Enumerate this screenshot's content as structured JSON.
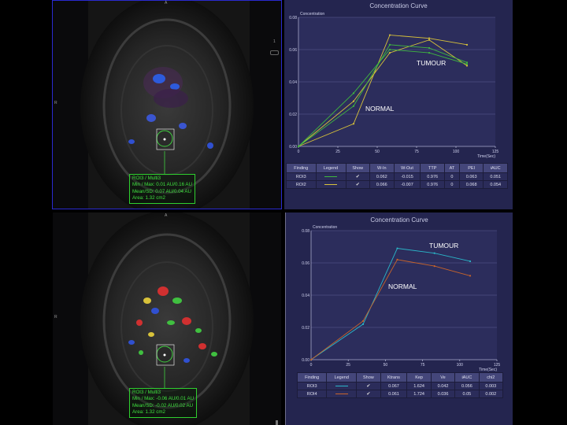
{
  "top": {
    "mri": {
      "orient_top": "A",
      "orient_left": "R",
      "roi_lines": [
        "ROI3 / Multi3",
        "Min / Max: 0.01 AU/0.16 AU",
        "Mean/SD: 0.07 AU/0.04 AU",
        "Area: 1.32 cm2"
      ]
    },
    "side_marker": "1",
    "chart": {
      "title": "Concentration Curve",
      "ylabel": "Concentration",
      "xlabel": "Time(Sec)",
      "annotations": [
        "TUMOUR",
        "NORMAL"
      ]
    },
    "table": {
      "headers": [
        "Finding",
        "Legend",
        "Show",
        "W-In",
        "W-Out",
        "TTP",
        "AT",
        "PEI",
        "iAUC"
      ],
      "rows": [
        {
          "finding": "ROI3",
          "color": "#3fb83f",
          "values": [
            "0.062",
            "-0.015",
            "0.976",
            "0",
            "0.063",
            "0.051"
          ]
        },
        {
          "finding": "ROI2",
          "color": "#d8c23a",
          "values": [
            "0.066",
            "-0.007",
            "0.976",
            "0",
            "0.068",
            "0.054"
          ]
        }
      ]
    }
  },
  "bottom": {
    "mri": {
      "orient_top": "A",
      "orient_left": "R",
      "roi_lines": [
        "ROI3 / Multi3",
        "Min / Max: -0.06 AU/0.01 AU",
        "Mean/SD: -0.02 AU/0.02 AU",
        "Area: 1.32 cm2"
      ]
    },
    "chart": {
      "title": "Concentration Curve",
      "ylabel": "Concentration",
      "xlabel": "Time(Sec)",
      "annotations": [
        "TUMOUR",
        "NORMAL"
      ]
    },
    "table": {
      "headers": [
        "Finding",
        "Legend",
        "Show",
        "Ktrans",
        "Kep",
        "Ve",
        "iAUC",
        "chi2"
      ],
      "rows": [
        {
          "finding": "ROI3",
          "color": "#2ab5c8",
          "values": [
            "0.067",
            "1.624",
            "0.042",
            "0.056",
            "0.003"
          ]
        },
        {
          "finding": "ROI4",
          "color": "#c8642a",
          "values": [
            "0.061",
            "1.724",
            "0.036",
            "0.05",
            "0.002"
          ]
        }
      ]
    }
  },
  "chart_data": [
    {
      "type": "line",
      "title": "Concentration Curve",
      "xlabel": "Time(Sec)",
      "ylabel": "Concentration",
      "xlim": [
        0,
        125
      ],
      "ylim": [
        0,
        0.08
      ],
      "xticks": [
        0,
        25,
        50,
        75,
        100,
        125
      ],
      "yticks": [
        "0.00",
        "0.02",
        "0.04",
        "0.06",
        "0.08"
      ],
      "annotations": [
        "TUMOUR",
        "NORMAL"
      ],
      "series": [
        {
          "color": "#d8c23a",
          "x": [
            0,
            35,
            58,
            83,
            107
          ],
          "y": [
            0,
            0.014,
            0.069,
            0.067,
            0.063
          ]
        },
        {
          "color": "#d8c23a",
          "x": [
            0,
            35,
            58,
            83,
            107
          ],
          "y": [
            0,
            0.028,
            0.058,
            0.066,
            0.05
          ]
        },
        {
          "color": "#3fb83f",
          "x": [
            0,
            35,
            58,
            83,
            107
          ],
          "y": [
            0,
            0.025,
            0.063,
            0.061,
            0.052
          ]
        },
        {
          "color": "#3fb83f",
          "x": [
            0,
            35,
            58,
            83,
            107
          ],
          "y": [
            0,
            0.033,
            0.06,
            0.058,
            0.051
          ]
        }
      ]
    },
    {
      "type": "line",
      "title": "Concentration Curve",
      "xlabel": "Time(Sec)",
      "ylabel": "Concentration",
      "xlim": [
        0,
        125
      ],
      "ylim": [
        0,
        0.08
      ],
      "xticks": [
        0,
        25,
        50,
        75,
        100,
        125
      ],
      "yticks": [
        "0.00",
        "0.02",
        "0.04",
        "0.06",
        "0.08"
      ],
      "annotations": [
        "TUMOUR",
        "NORMAL"
      ],
      "series": [
        {
          "color": "#2ab5c8",
          "x": [
            0,
            35,
            58,
            83,
            107
          ],
          "y": [
            0,
            0.022,
            0.069,
            0.066,
            0.061
          ]
        },
        {
          "color": "#c8642a",
          "x": [
            0,
            35,
            58,
            83,
            107
          ],
          "y": [
            0,
            0.024,
            0.062,
            0.058,
            0.052
          ]
        }
      ]
    }
  ]
}
